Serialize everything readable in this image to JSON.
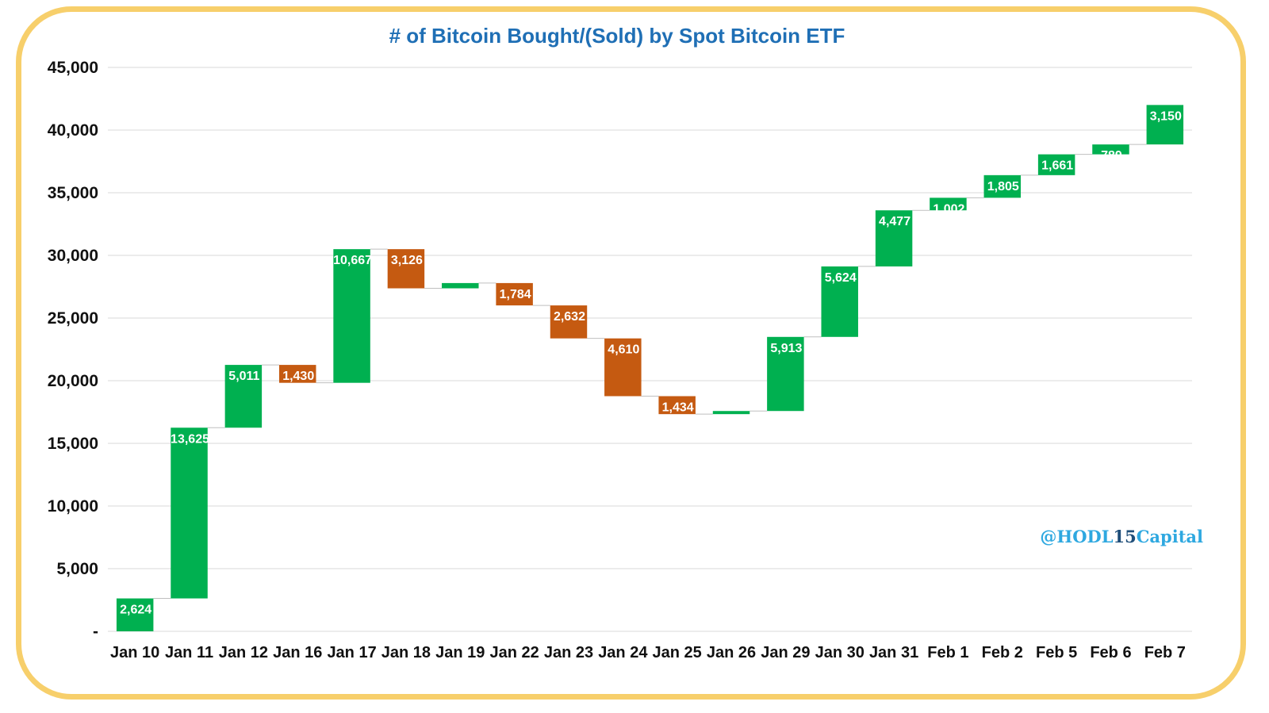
{
  "chart_data": {
    "type": "waterfall",
    "title": "# of Bitcoin Bought/(Sold) by Spot Bitcoin ETF",
    "xlabel": "",
    "ylabel": "",
    "ylim": [
      0,
      45000
    ],
    "grid": true,
    "legend": "none",
    "watermark": {
      "prefix": "@HODL",
      "number": "15",
      "suffix": "Capital"
    },
    "yticks": [
      {
        "value": 0,
        "label": "-"
      },
      {
        "value": 5000,
        "label": "5,000"
      },
      {
        "value": 10000,
        "label": "10,000"
      },
      {
        "value": 15000,
        "label": "15,000"
      },
      {
        "value": 20000,
        "label": "20,000"
      },
      {
        "value": 25000,
        "label": "25,000"
      },
      {
        "value": 30000,
        "label": "30,000"
      },
      {
        "value": 35000,
        "label": "35,000"
      },
      {
        "value": 40000,
        "label": "40,000"
      },
      {
        "value": 45000,
        "label": "45,000"
      }
    ],
    "categories": [
      "Jan 10",
      "Jan 11",
      "Jan 12",
      "Jan 16",
      "Jan 17",
      "Jan 18",
      "Jan 19",
      "Jan 22",
      "Jan 23",
      "Jan 24",
      "Jan 25",
      "Jan 26",
      "Jan 29",
      "Jan 30",
      "Jan 31",
      "Feb 1",
      "Feb 2",
      "Feb 5",
      "Feb 6",
      "Feb 7"
    ],
    "values": [
      2624,
      13625,
      5011,
      -1430,
      10667,
      -3126,
      420,
      -1784,
      -2632,
      -4610,
      -1434,
      250,
      5913,
      5624,
      4477,
      1002,
      1805,
      1661,
      789,
      3150
    ],
    "data_labels": [
      "2,624",
      "13,625",
      "5,011",
      "1,430",
      "10,667",
      "3,126",
      "",
      "1,784",
      "2,632",
      "4,610",
      "1,434",
      "",
      "5,913",
      "5,624",
      "4,477",
      "1,002",
      "1,805",
      "1,661",
      "789",
      "3,150"
    ],
    "colors": {
      "increase": "#00b050",
      "decrease": "#c55a11",
      "title": "#1f6fb5",
      "grid": "#d9d9d9",
      "connector": "#bfbfbf",
      "watermark": "#2ea8e0",
      "watermark_number": "#1f4e79",
      "frame": "#f7cf6b"
    }
  }
}
